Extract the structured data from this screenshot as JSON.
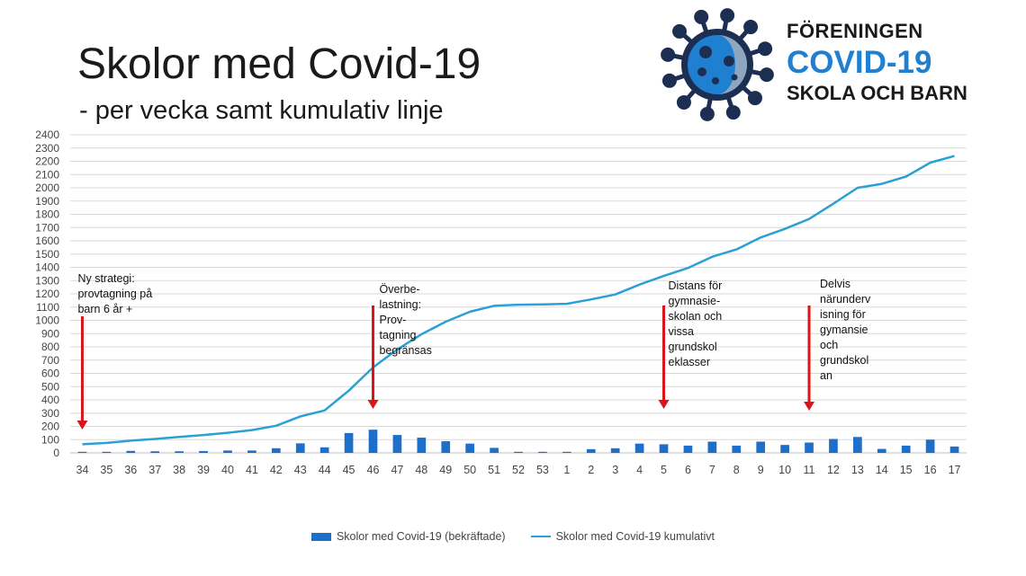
{
  "header": {
    "title": "Skolor med Covid-19",
    "subtitle": "- per vecka samt kumulativ linje"
  },
  "logo": {
    "line1": "FÖRENINGEN",
    "line2": "COVID-19",
    "line3": "SKOLA OCH BARN"
  },
  "annotations": [
    {
      "text": "Ny strategi:\nprovtagning på\nbarn 6 år +",
      "week": "34"
    },
    {
      "text": "Överbe-\nlastning:\nProv-\ntagning\nbegränsas",
      "week": "46"
    },
    {
      "text": "Distans för\ngymnasie-\nskolan och\nvissa\ngrundskol\neklasser",
      "week": "5"
    },
    {
      "text": "Delvis\nnärunderv\nisning för\ngymansie\noch\ngrundskol\nan",
      "week": "11"
    }
  ],
  "colors": {
    "bar": "#1d6fc9",
    "line": "#2aa0d6",
    "arrow": "#d9141b",
    "grid": "#d9d9d9"
  },
  "chart_data": {
    "type": "bar",
    "categories": [
      "34",
      "35",
      "36",
      "37",
      "38",
      "39",
      "40",
      "41",
      "42",
      "43",
      "44",
      "45",
      "46",
      "47",
      "48",
      "49",
      "50",
      "51",
      "52",
      "53",
      "1",
      "2",
      "3",
      "4",
      "5",
      "6",
      "7",
      "8",
      "9",
      "10",
      "11",
      "12",
      "13",
      "14",
      "15",
      "16",
      "17"
    ],
    "series": [
      {
        "name": "Skolor med Covid-19 (bekräftade)",
        "type": "bar",
        "values": [
          8,
          8,
          15,
          12,
          12,
          14,
          18,
          18,
          35,
          72,
          42,
          150,
          175,
          135,
          115,
          88,
          70,
          38,
          8,
          8,
          8,
          28,
          35,
          70,
          65,
          55,
          85,
          55,
          85,
          60,
          78,
          105,
          120,
          30,
          55,
          100,
          48
        ]
      },
      {
        "name": "Skolor med Covid-19 kumulativt",
        "type": "line",
        "values": [
          65,
          75,
          92,
          105,
          120,
          135,
          152,
          172,
          205,
          275,
          320,
          470,
          645,
          780,
          895,
          990,
          1065,
          1110,
          1118,
          1120,
          1125,
          1158,
          1195,
          1270,
          1335,
          1395,
          1480,
          1535,
          1625,
          1690,
          1765,
          1880,
          2000,
          2030,
          2085,
          2190,
          2240
        ]
      }
    ],
    "y_ticks": [
      0,
      100,
      200,
      300,
      400,
      500,
      600,
      700,
      800,
      900,
      1000,
      1100,
      1200,
      1300,
      1400,
      1500,
      1600,
      1700,
      1800,
      1900,
      2000,
      2100,
      2200,
      2300,
      2400
    ],
    "ylim": [
      0,
      2400
    ],
    "grid": true,
    "legend": "bottom"
  }
}
